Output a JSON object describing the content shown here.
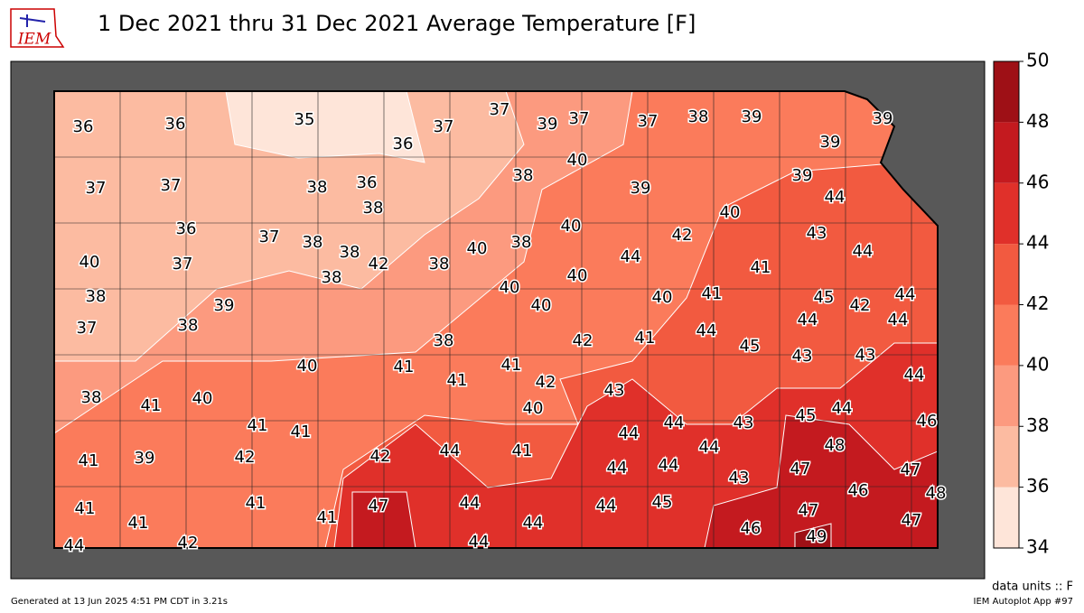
{
  "header": {
    "logo": "IEM",
    "title": "1 Dec 2021 thru 31 Dec 2021 Average Temperature [F]"
  },
  "map": {
    "stations": [
      36,
      36,
      35,
      36,
      37,
      37,
      39,
      37,
      37,
      38,
      39,
      39,
      39,
      37,
      37,
      38,
      36,
      38,
      38,
      40,
      39,
      39,
      44,
      36,
      37,
      38,
      38,
      38,
      42,
      38,
      40,
      38,
      40,
      44,
      42,
      40,
      43,
      44,
      41,
      40,
      37,
      38,
      37,
      39,
      38,
      40,
      40,
      40,
      40,
      41,
      45,
      42,
      44,
      44,
      44,
      38,
      42,
      41,
      44,
      45,
      43,
      43,
      44,
      40,
      41,
      41,
      41,
      42,
      43,
      40,
      38,
      41,
      40,
      41,
      41,
      45,
      44,
      46,
      44,
      43,
      44,
      48,
      41,
      39,
      42,
      42,
      44,
      41,
      44,
      44,
      44,
      47,
      43,
      47,
      46,
      48,
      41,
      41,
      41,
      41,
      47,
      44,
      44,
      44,
      45,
      46,
      47,
      47,
      49,
      44,
      42,
      44
    ]
  },
  "colorbar": {
    "ticks": [
      34,
      36,
      38,
      40,
      42,
      44,
      46,
      48,
      50
    ],
    "colors": [
      "#fee5d9",
      "#fcbba1",
      "#fc9a7f",
      "#fb7b5b",
      "#f25a40",
      "#e0302a",
      "#c41a1f",
      "#9e1016"
    ]
  },
  "footer": {
    "units": "data units :: F",
    "generated": "Generated at 13 Jun 2025 4:51 PM CDT in 3.21s",
    "app": "IEM Autoplot App #97"
  }
}
